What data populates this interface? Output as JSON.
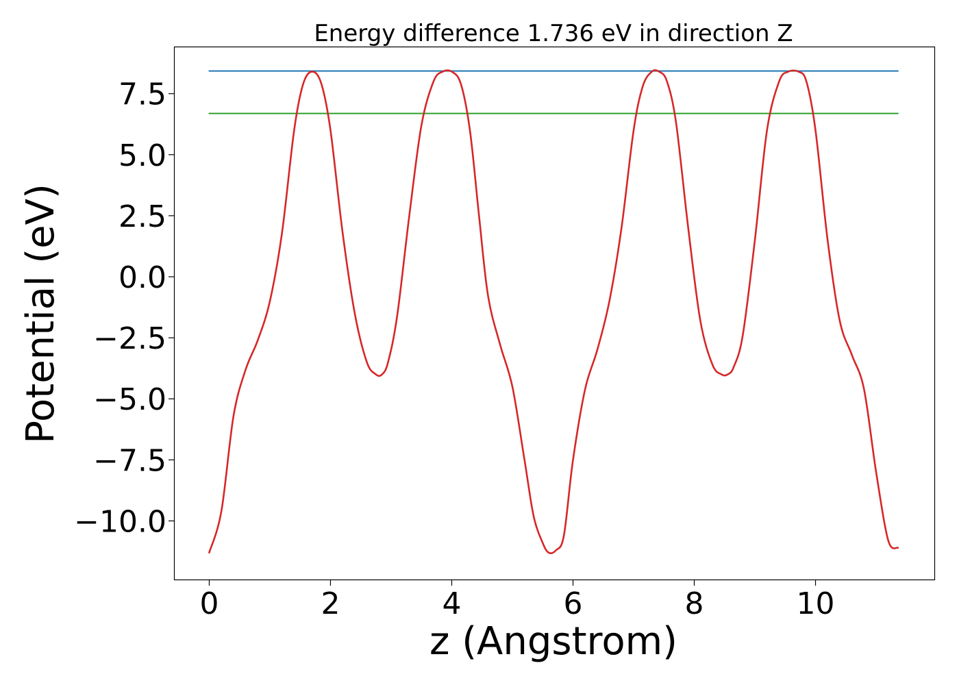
{
  "chart_data": {
    "type": "line",
    "title": "Energy difference 1.736 eV in direction Z",
    "xlabel": "z (Angstrom)",
    "ylabel": "Potential (eV)",
    "xlim": [
      -0.57,
      11.96
    ],
    "ylim": [
      -12.4,
      9.4
    ],
    "xticks": [
      0,
      2,
      4,
      6,
      8,
      10
    ],
    "xtick_labels": [
      "0",
      "2",
      "4",
      "6",
      "8",
      "10"
    ],
    "yticks": [
      -10.0,
      -7.5,
      -5.0,
      -2.5,
      0.0,
      2.5,
      5.0,
      7.5
    ],
    "ytick_labels": [
      "−10.0",
      "−7.5",
      "−5.0",
      "−2.5",
      "0.0",
      "2.5",
      "5.0",
      "7.5"
    ],
    "grid": false,
    "series": [
      {
        "color": "#d62728",
        "x": [
          0.0,
          0.2,
          0.4,
          0.6,
          0.8,
          1.0,
          1.2,
          1.4,
          1.55,
          1.7,
          1.85,
          2.0,
          2.2,
          2.4,
          2.6,
          2.75,
          2.85,
          2.95,
          3.1,
          3.3,
          3.5,
          3.7,
          3.85,
          4.0,
          4.15,
          4.3,
          4.45,
          4.6,
          4.8,
          5.0,
          5.2,
          5.35,
          5.5,
          5.6,
          5.72,
          5.85,
          6.0,
          6.2,
          6.4,
          6.6,
          6.8,
          7.0,
          7.15,
          7.3,
          7.42,
          7.55,
          7.7,
          7.9,
          8.1,
          8.3,
          8.45,
          8.55,
          8.65,
          8.8,
          9.0,
          9.2,
          9.4,
          9.55,
          9.72,
          9.85,
          10.0,
          10.2,
          10.4,
          10.6,
          10.8,
          11.0,
          11.2,
          11.36
        ],
        "y": [
          -11.3,
          -9.6,
          -5.7,
          -3.8,
          -2.6,
          -1.0,
          1.8,
          6.0,
          7.9,
          8.4,
          7.9,
          6.0,
          1.8,
          -1.5,
          -3.5,
          -4.0,
          -4.0,
          -3.5,
          -1.6,
          2.5,
          6.2,
          8.0,
          8.4,
          8.4,
          7.9,
          6.0,
          2.5,
          -0.8,
          -2.8,
          -4.5,
          -7.5,
          -9.8,
          -10.9,
          -11.3,
          -11.2,
          -10.6,
          -7.5,
          -4.6,
          -3.0,
          -1.0,
          2.0,
          6.0,
          7.8,
          8.4,
          8.4,
          8.0,
          6.3,
          2.0,
          -1.8,
          -3.6,
          -4.0,
          -4.0,
          -3.7,
          -2.4,
          1.5,
          6.0,
          8.0,
          8.4,
          8.4,
          8.0,
          6.0,
          1.5,
          -1.8,
          -3.2,
          -4.6,
          -8.0,
          -10.8,
          -11.1
        ]
      },
      {
        "color": "#1f77b4",
        "x": [
          0.0,
          11.36
        ],
        "y": [
          8.43,
          8.43
        ]
      },
      {
        "color": "#2ca02c",
        "x": [
          0.0,
          11.36
        ],
        "y": [
          6.69,
          6.69
        ]
      }
    ]
  }
}
